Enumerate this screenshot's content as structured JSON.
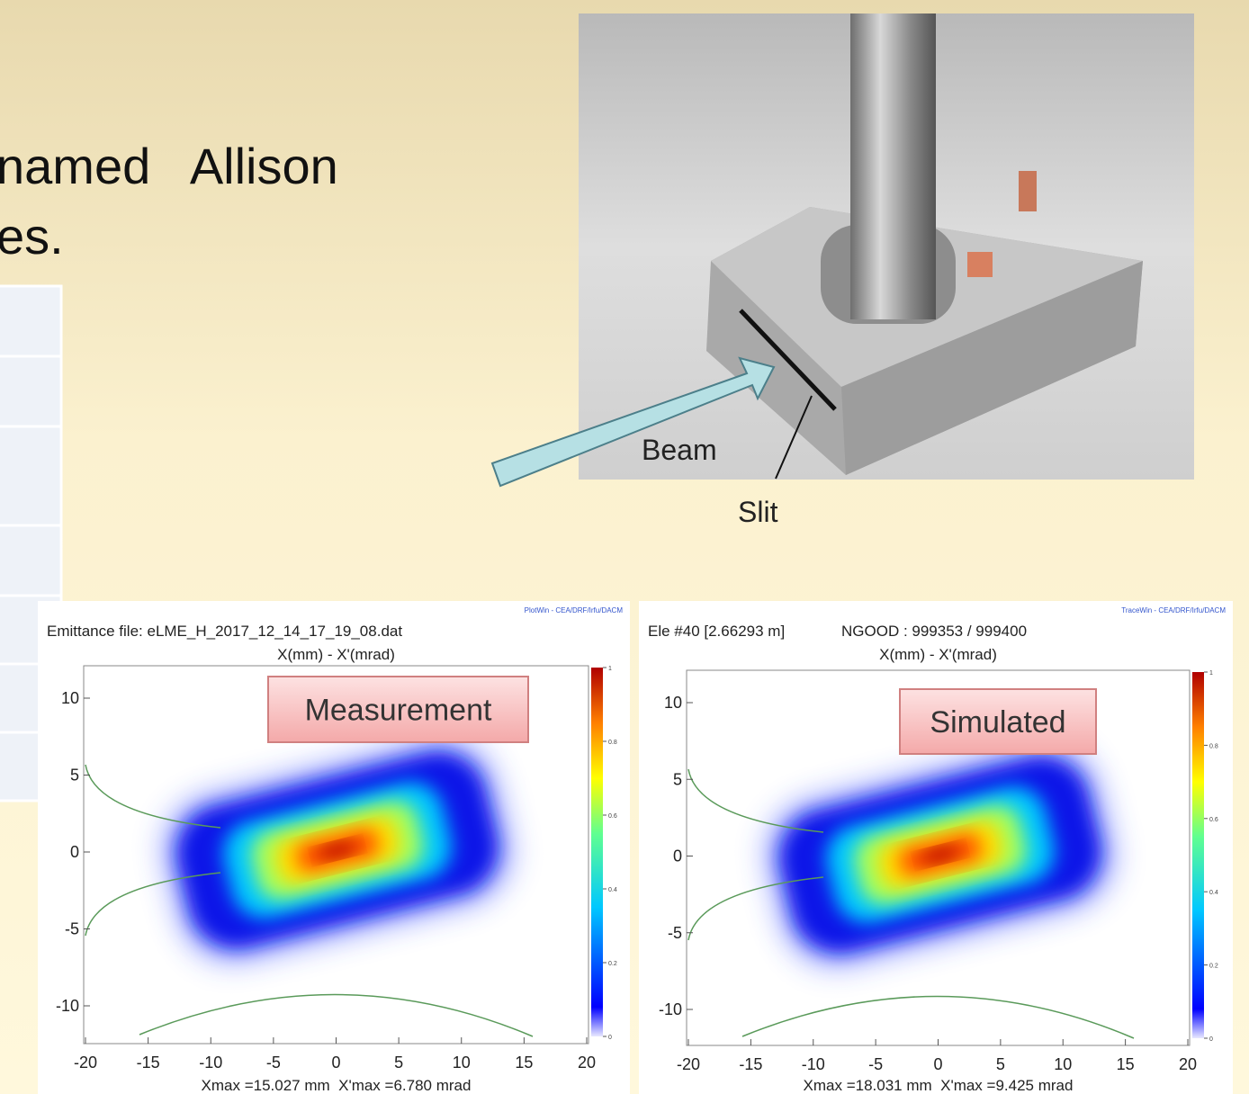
{
  "slide": {
    "text_lines": [
      "named   Allison",
      "es."
    ]
  },
  "photo": {
    "beam_label": "Beam",
    "slit_label": "Slit"
  },
  "plots": [
    {
      "header": [
        "Emittance file: eLME_H_2017_12_14_17_19_08.dat"
      ],
      "credit": "PlotWin - CEA/DRF/Irfu/DACM",
      "axis_title": "X(mm) - X'(mrad)",
      "label": "Measurement",
      "xticks": [
        -20,
        -15,
        -10,
        -5,
        0,
        5,
        10,
        15,
        20
      ],
      "yticks": [
        10,
        5,
        0,
        -5,
        -10
      ],
      "colorbar_ticks": [
        1,
        0.8,
        0.6,
        0.4,
        0.2,
        0
      ],
      "footer": "Xmax =15.027 mm  X'max =6.780 mrad"
    },
    {
      "header": [
        "Ele #40 [2.66293 m]",
        "NGOOD : 999353 / 999400"
      ],
      "credit": "TraceWin - CEA/DRF/Irfu/DACM",
      "axis_title": "X(mm) - X'(mrad)",
      "label": "Simulated",
      "xticks": [
        -20,
        -15,
        -10,
        -5,
        0,
        5,
        10,
        15,
        20
      ],
      "yticks": [
        10,
        5,
        0,
        -5,
        -10
      ],
      "colorbar_ticks": [
        1,
        0.8,
        0.6,
        0.4,
        0.2,
        0
      ],
      "footer": "Xmax =18.031 mm  X'max =9.425 mrad"
    }
  ]
}
